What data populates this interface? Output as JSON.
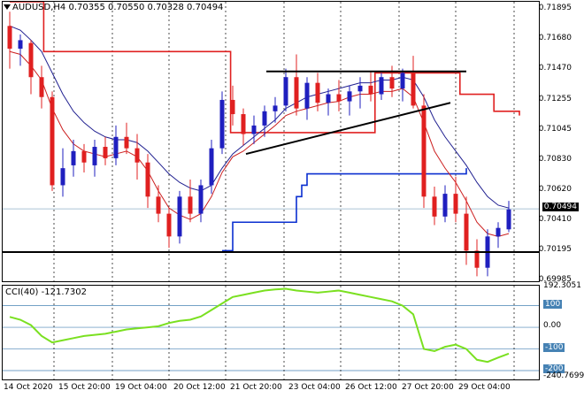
{
  "header": {
    "symbol_line": "AUDUSD,H4  0.70355 0.70550 0.70328 0.70494"
  },
  "price_axis": {
    "labels": [
      "0.71895",
      "0.71680",
      "0.71470",
      "0.71255",
      "0.71045",
      "0.70830",
      "0.70620",
      "0.70410",
      "0.70195",
      "0.69985"
    ],
    "current_price": "0.70494"
  },
  "cci": {
    "title": "CCI(40) -121.7302",
    "top_value": "192.3051",
    "levels": [
      "100",
      "0.00",
      "-100",
      "-200"
    ],
    "bottom_value": "-240.7699"
  },
  "time_axis": {
    "labels": [
      "14 Oct 2020",
      "15 Oct 20:00",
      "19 Oct 04:00",
      "20 Oct 12:00",
      "21 Oct 20:00",
      "23 Oct 04:00",
      "26 Oct 12:00",
      "27 Oct 20:00",
      "29 Oct 04:00"
    ]
  },
  "colors": {
    "bull": "#1f1fbf",
    "bear": "#e02020",
    "ma_fast": "#cc2020",
    "ma_slow": "#202090",
    "support": "#0a2fd0",
    "resistance": "#e02020",
    "cci_line": "#7ae020",
    "cci_levels": "#4682b4"
  },
  "chart_data": {
    "type": "candlestick",
    "ylim": [
      0.69985,
      0.7195
    ],
    "candles": [
      {
        "o": 0.7178,
        "h": 0.7188,
        "l": 0.7148,
        "c": 0.7162
      },
      {
        "o": 0.7162,
        "h": 0.7172,
        "l": 0.715,
        "c": 0.7168
      },
      {
        "o": 0.7166,
        "h": 0.7168,
        "l": 0.713,
        "c": 0.7142
      },
      {
        "o": 0.7142,
        "h": 0.715,
        "l": 0.712,
        "c": 0.7128
      },
      {
        "o": 0.7128,
        "h": 0.7132,
        "l": 0.7062,
        "c": 0.7066
      },
      {
        "o": 0.7066,
        "h": 0.7092,
        "l": 0.7058,
        "c": 0.7078
      },
      {
        "o": 0.708,
        "h": 0.7098,
        "l": 0.7072,
        "c": 0.709
      },
      {
        "o": 0.709,
        "h": 0.7095,
        "l": 0.7075,
        "c": 0.7082
      },
      {
        "o": 0.708,
        "h": 0.7098,
        "l": 0.7072,
        "c": 0.7093
      },
      {
        "o": 0.7093,
        "h": 0.71,
        "l": 0.708,
        "c": 0.7085
      },
      {
        "o": 0.7085,
        "h": 0.7108,
        "l": 0.708,
        "c": 0.71
      },
      {
        "o": 0.71,
        "h": 0.711,
        "l": 0.7088,
        "c": 0.7092
      },
      {
        "o": 0.7092,
        "h": 0.7102,
        "l": 0.707,
        "c": 0.7082
      },
      {
        "o": 0.7082,
        "h": 0.7088,
        "l": 0.705,
        "c": 0.7058
      },
      {
        "o": 0.7058,
        "h": 0.7066,
        "l": 0.704,
        "c": 0.7046
      },
      {
        "o": 0.7046,
        "h": 0.705,
        "l": 0.7022,
        "c": 0.703
      },
      {
        "o": 0.703,
        "h": 0.7062,
        "l": 0.7025,
        "c": 0.7058
      },
      {
        "o": 0.7058,
        "h": 0.707,
        "l": 0.704,
        "c": 0.7046
      },
      {
        "o": 0.7046,
        "h": 0.707,
        "l": 0.704,
        "c": 0.7066
      },
      {
        "o": 0.7066,
        "h": 0.7098,
        "l": 0.706,
        "c": 0.7092
      },
      {
        "o": 0.7092,
        "h": 0.7132,
        "l": 0.7088,
        "c": 0.7126
      },
      {
        "o": 0.7126,
        "h": 0.7136,
        "l": 0.7108,
        "c": 0.7116
      },
      {
        "o": 0.7116,
        "h": 0.712,
        "l": 0.7094,
        "c": 0.7102
      },
      {
        "o": 0.7102,
        "h": 0.7115,
        "l": 0.7095,
        "c": 0.7108
      },
      {
        "o": 0.7108,
        "h": 0.7122,
        "l": 0.71,
        "c": 0.7118
      },
      {
        "o": 0.7118,
        "h": 0.7128,
        "l": 0.711,
        "c": 0.7122
      },
      {
        "o": 0.7122,
        "h": 0.7148,
        "l": 0.7118,
        "c": 0.7142
      },
      {
        "o": 0.7142,
        "h": 0.7158,
        "l": 0.7115,
        "c": 0.712
      },
      {
        "o": 0.712,
        "h": 0.7142,
        "l": 0.7112,
        "c": 0.7138
      },
      {
        "o": 0.7138,
        "h": 0.7145,
        "l": 0.7118,
        "c": 0.7124
      },
      {
        "o": 0.7124,
        "h": 0.7134,
        "l": 0.7115,
        "c": 0.713
      },
      {
        "o": 0.713,
        "h": 0.714,
        "l": 0.7118,
        "c": 0.7125
      },
      {
        "o": 0.7125,
        "h": 0.7136,
        "l": 0.7115,
        "c": 0.7132
      },
      {
        "o": 0.7132,
        "h": 0.7142,
        "l": 0.712,
        "c": 0.7136
      },
      {
        "o": 0.7136,
        "h": 0.7146,
        "l": 0.7125,
        "c": 0.713
      },
      {
        "o": 0.713,
        "h": 0.7145,
        "l": 0.7126,
        "c": 0.7142
      },
      {
        "o": 0.7142,
        "h": 0.715,
        "l": 0.7128,
        "c": 0.7134
      },
      {
        "o": 0.7134,
        "h": 0.7148,
        "l": 0.7125,
        "c": 0.7145
      },
      {
        "o": 0.7145,
        "h": 0.7157,
        "l": 0.712,
        "c": 0.7122
      },
      {
        "o": 0.7122,
        "h": 0.713,
        "l": 0.705,
        "c": 0.7058
      },
      {
        "o": 0.7058,
        "h": 0.7065,
        "l": 0.7038,
        "c": 0.7044
      },
      {
        "o": 0.7044,
        "h": 0.7066,
        "l": 0.704,
        "c": 0.706
      },
      {
        "o": 0.706,
        "h": 0.7072,
        "l": 0.704,
        "c": 0.7046
      },
      {
        "o": 0.7046,
        "h": 0.7058,
        "l": 0.701,
        "c": 0.702
      },
      {
        "o": 0.702,
        "h": 0.7028,
        "l": 0.7002,
        "c": 0.7008
      },
      {
        "o": 0.7008,
        "h": 0.7035,
        "l": 0.7002,
        "c": 0.703
      },
      {
        "o": 0.703,
        "h": 0.704,
        "l": 0.7022,
        "c": 0.7036
      },
      {
        "o": 0.7035,
        "h": 0.7055,
        "l": 0.7033,
        "c": 0.7049
      }
    ],
    "ma_fast": [
      0.716,
      0.7158,
      0.715,
      0.714,
      0.712,
      0.7105,
      0.7095,
      0.709,
      0.7088,
      0.7086,
      0.7088,
      0.709,
      0.7086,
      0.7076,
      0.7062,
      0.705,
      0.7045,
      0.7042,
      0.7046,
      0.7058,
      0.7075,
      0.7086,
      0.709,
      0.7096,
      0.7102,
      0.7108,
      0.7115,
      0.7118,
      0.712,
      0.7122,
      0.7124,
      0.7125,
      0.7128,
      0.713,
      0.713,
      0.7132,
      0.7132,
      0.7134,
      0.7128,
      0.711,
      0.709,
      0.7078,
      0.7068,
      0.7055,
      0.704,
      0.7032,
      0.703,
      0.7032
    ],
    "ma_slow": [
      0.7178,
      0.7175,
      0.7168,
      0.716,
      0.7145,
      0.713,
      0.7118,
      0.711,
      0.7104,
      0.71,
      0.7098,
      0.7098,
      0.7096,
      0.709,
      0.7082,
      0.7074,
      0.7068,
      0.7064,
      0.7062,
      0.7066,
      0.7078,
      0.7088,
      0.7094,
      0.71,
      0.7106,
      0.7112,
      0.712,
      0.7124,
      0.7128,
      0.713,
      0.7132,
      0.7134,
      0.7136,
      0.7138,
      0.7138,
      0.714,
      0.714,
      0.7142,
      0.714,
      0.7128,
      0.7112,
      0.71,
      0.709,
      0.708,
      0.7068,
      0.7058,
      0.7052,
      0.705
    ],
    "resistance_steps": [
      [
        0,
        0.7195
      ],
      [
        4,
        0.716
      ],
      [
        22,
        0.716
      ],
      [
        26,
        0.7103
      ],
      [
        33,
        0.7103
      ],
      [
        43,
        0.7145
      ],
      [
        52,
        0.7145
      ],
      [
        53,
        0.713
      ],
      [
        56,
        0.713
      ],
      [
        57,
        0.7118
      ],
      [
        60,
        0.7115
      ]
    ],
    "support_steps": [
      [
        32,
        0.702
      ],
      [
        34,
        0.704
      ],
      [
        43,
        0.704
      ],
      [
        46,
        0.7058
      ],
      [
        47,
        0.7066
      ],
      [
        48,
        0.7074
      ],
      [
        77,
        0.7074
      ],
      [
        78,
        0.7078
      ]
    ],
    "cci_values": [
      48,
      35,
      10,
      -40,
      -70,
      -60,
      -50,
      -40,
      -35,
      -30,
      -20,
      -10,
      -5,
      0,
      5,
      20,
      30,
      35,
      50,
      80,
      110,
      140,
      150,
      160,
      170,
      175,
      178,
      170,
      165,
      160,
      165,
      170,
      160,
      150,
      140,
      130,
      120,
      100,
      60,
      -100,
      -110,
      -90,
      -80,
      -100,
      -150,
      -160,
      -140,
      -121.7
    ]
  }
}
